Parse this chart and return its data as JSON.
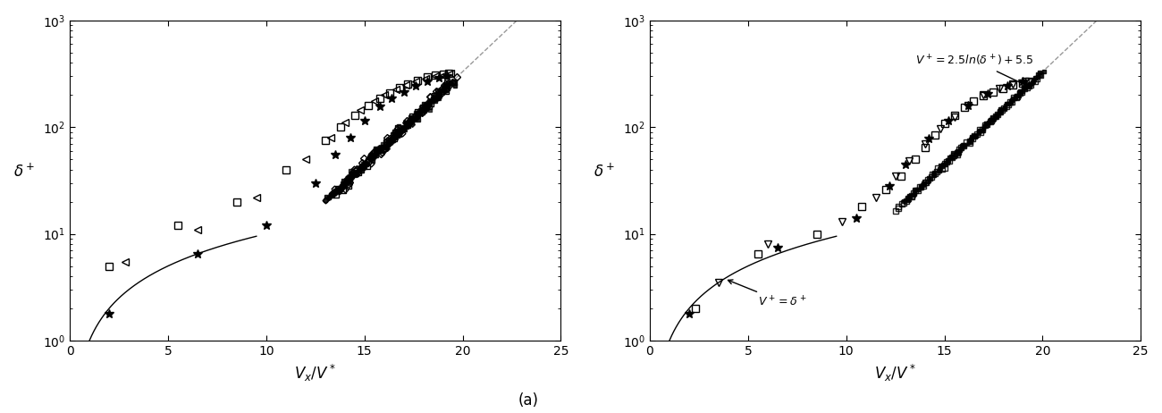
{
  "xlim": [
    0,
    25
  ],
  "ylim_log": [
    1.0,
    1000.0
  ],
  "xlabel": "$V_x/V^*$",
  "ylabel": "$\\delta^+$",
  "panel_a_label": "(a)",
  "annotation_log_law": "$V^+=2.5ln(\\delta^+)+5.5$",
  "annotation_visc": "$V^+=\\delta^+$",
  "background": "#ffffff",
  "dashed_color": "#999999",
  "sq_x_L": [
    2.0,
    5.5,
    8.5,
    11.0,
    13.0,
    13.8,
    14.5,
    15.2,
    15.8,
    16.3,
    16.8,
    17.2,
    17.7,
    18.2,
    18.6,
    19.0,
    19.3
  ],
  "sq_y_L": [
    5.0,
    12.0,
    20.0,
    40.0,
    75.0,
    100.0,
    130.0,
    160.0,
    185.0,
    210.0,
    235.0,
    255.0,
    275.0,
    295.0,
    305.0,
    315.0,
    320.0
  ],
  "tri_x_L": [
    2.8,
    6.5,
    9.5,
    12.0,
    13.3,
    14.0,
    14.8,
    15.5,
    16.0,
    16.6,
    17.1,
    17.6,
    18.1,
    18.6,
    19.0,
    19.4
  ],
  "tri_y_L": [
    5.5,
    11.0,
    22.0,
    50.0,
    80.0,
    110.0,
    145.0,
    175.0,
    200.0,
    225.0,
    248.0,
    268.0,
    285.0,
    300.0,
    310.0,
    318.0
  ],
  "star_x_L": [
    2.0,
    6.5,
    10.0,
    12.5,
    13.5,
    14.3,
    15.0,
    15.8,
    16.4,
    17.0,
    17.6,
    18.2,
    18.8,
    19.2
  ],
  "star_y_L": [
    1.8,
    6.5,
    12.0,
    30.0,
    55.0,
    80.0,
    115.0,
    155.0,
    185.0,
    215.0,
    245.0,
    268.0,
    290.0,
    300.0
  ],
  "sq_x_R": [
    2.3,
    5.5,
    8.5,
    10.8,
    12.0,
    12.8,
    13.5,
    14.0,
    14.5,
    15.0,
    15.5,
    16.0,
    16.5,
    17.0,
    17.5,
    18.0,
    18.5,
    19.0,
    19.3
  ],
  "sq_y_R": [
    2.0,
    6.5,
    10.0,
    18.0,
    26.0,
    35.0,
    50.0,
    65.0,
    85.0,
    108.0,
    130.0,
    152.0,
    175.0,
    198.0,
    215.0,
    232.0,
    248.0,
    260.0,
    268.0
  ],
  "tri_x_R": [
    3.5,
    6.0,
    9.8,
    11.5,
    12.5,
    13.2,
    14.0,
    14.8,
    15.5,
    16.2,
    17.0,
    17.8,
    18.5,
    19.1
  ],
  "tri_y_R": [
    3.5,
    8.0,
    13.0,
    22.0,
    35.0,
    48.0,
    70.0,
    96.0,
    125.0,
    160.0,
    200.0,
    232.0,
    255.0,
    270.0
  ],
  "star_x_R": [
    2.0,
    6.5,
    10.5,
    12.2,
    13.0,
    14.2,
    15.2,
    16.2,
    17.2,
    18.2,
    19.0
  ],
  "star_y_R": [
    1.8,
    7.5,
    14.0,
    28.0,
    45.0,
    78.0,
    115.0,
    160.0,
    205.0,
    242.0,
    268.0
  ]
}
